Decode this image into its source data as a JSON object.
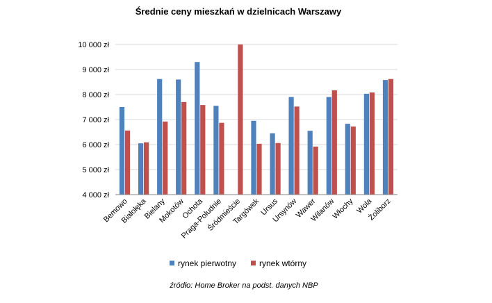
{
  "chart_data": {
    "type": "bar",
    "title": "Średnie ceny mieszkań w dzielnicach Warszawy",
    "categories": [
      "Bemowo",
      "Białołęka",
      "Bielany",
      "Mokotów",
      "Ochota",
      "Praga-Południe",
      "Śródmieście",
      "Targówek",
      "Ursus",
      "Ursynów",
      "Wawer",
      "Wilanów",
      "Włochy",
      "Wola",
      "Żoliborz"
    ],
    "series": [
      {
        "name": "rynek pierwotny",
        "color": "#4f81bd",
        "values": [
          7500,
          6050,
          8620,
          8600,
          9300,
          7550,
          4000,
          6950,
          6450,
          7900,
          6550,
          7900,
          6830,
          8030,
          8580
        ]
      },
      {
        "name": "rynek wtórny",
        "color": "#c0504d",
        "values": [
          6560,
          6090,
          6920,
          7700,
          7580,
          6870,
          10000,
          6030,
          6060,
          7520,
          5920,
          8170,
          6720,
          8080,
          8620
        ]
      }
    ],
    "ylim": [
      4000,
      10000
    ],
    "yticks": [
      "4 000 zł",
      "5 000 zł",
      "6 000 zł",
      "7 000 zł",
      "8 000 zł",
      "9 000 zł",
      "10 000 zł"
    ],
    "ytick_values": [
      4000,
      5000,
      6000,
      7000,
      8000,
      9000,
      10000
    ],
    "grid": true,
    "legend_position": "bottom",
    "source": "źródło: Home Broker na podst. danych NBP"
  }
}
